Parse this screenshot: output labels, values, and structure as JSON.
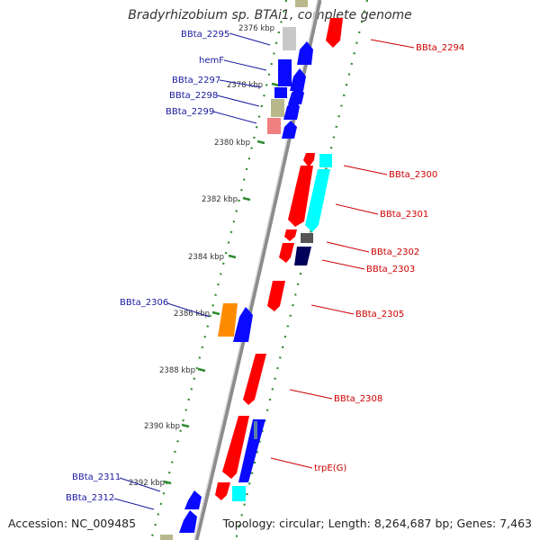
{
  "title": "Bradyrhizobium sp. BTAi1, complete genome",
  "footer": {
    "accession": "Accession: NC_009485",
    "topology": "Topology: circular; Length: 8,264,687 bp; Genes: 7,463"
  },
  "colors": {
    "backbone": "#8c8c8c",
    "forward_label": "#1a1aa0",
    "reverse_label": "#cc0000",
    "ticks": "#2e8b2e"
  },
  "kbp_ticks": [
    "2376 kbp",
    "2378 kbp",
    "2380 kbp",
    "2382 kbp",
    "2384 kbp",
    "2386 kbp",
    "2388 kbp",
    "2390 kbp",
    "2392 kbp"
  ],
  "forward_genes": [
    "BBta_2295",
    "hemF",
    "BBta_2297",
    "BBta_2298",
    "BBta_2299",
    "BBta_2306",
    "BBta_2311",
    "BBta_2312"
  ],
  "reverse_genes": [
    "BBta_2294",
    "BBta_2300",
    "BBta_2301",
    "BBta_2302",
    "BBta_2303",
    "BBta_2305",
    "BBta_2308",
    "trpE(G)"
  ]
}
